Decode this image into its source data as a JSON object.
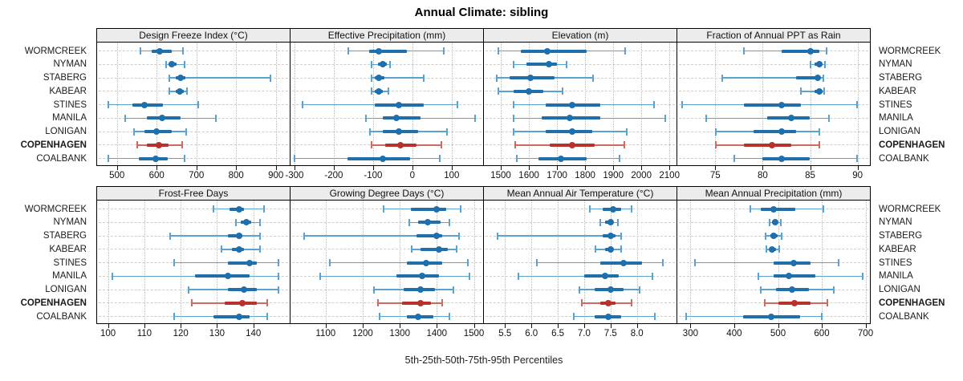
{
  "title": "Annual Climate: sibling",
  "footer": "5th-25th-50th-75th-95th Percentiles",
  "highlight_station": "COPENHAGEN",
  "colors": {
    "series_dark": "#1f6fad",
    "series_light": "#5aa2d0",
    "highlight_dark": "#b5332b",
    "highlight_light": "#cd6a62",
    "strip_bg": "#ececec",
    "panel_border": "#000000",
    "gridline": "#bcbcbc",
    "row_guide": "#cdcdcd"
  },
  "chart_data": {
    "type": "dotplot",
    "layout": {
      "rows": 2,
      "cols": 4,
      "grid": "dotted",
      "legend_position": "bottom"
    },
    "percentile_labels": [
      "5th",
      "25th",
      "50th",
      "75th",
      "95th"
    ],
    "stations": [
      "WORMCREEK",
      "NYMAN",
      "STABERG",
      "KABEAR",
      "STINES",
      "MANILA",
      "LONIGAN",
      "COPENHAGEN",
      "COALBANK"
    ],
    "panels": [
      {
        "title": "Design Freeze Index (°C)",
        "tick_values": [
          500,
          600,
          700,
          800,
          900
        ],
        "tick_labels": [
          "500",
          "600",
          "700",
          "800",
          "900"
        ],
        "xlim": [
          450,
          935
        ],
        "data": [
          [
            558,
            588,
            607,
            638,
            668
          ],
          [
            622,
            630,
            637,
            650,
            672
          ],
          [
            630,
            648,
            660,
            672,
            888
          ],
          [
            630,
            648,
            658,
            668,
            678
          ],
          [
            478,
            538,
            570,
            615,
            705
          ],
          [
            520,
            575,
            613,
            660,
            750
          ],
          [
            542,
            570,
            600,
            638,
            675
          ],
          [
            550,
            575,
            605,
            630,
            665
          ],
          [
            478,
            555,
            598,
            628,
            672
          ]
        ]
      },
      {
        "title": "Effective Precipitation (mm)",
        "tick_values": [
          -300,
          -200,
          -100,
          0,
          100
        ],
        "tick_labels": [
          "-300",
          "-200",
          "-100",
          "0",
          "100"
        ],
        "xlim": [
          -310,
          180
        ],
        "data": [
          [
            -165,
            -110,
            -85,
            -15,
            80
          ],
          [
            -105,
            -88,
            -75,
            -65,
            -55
          ],
          [
            -105,
            -95,
            -85,
            -70,
            30
          ],
          [
            -105,
            -95,
            -85,
            -75,
            -60
          ],
          [
            -280,
            -95,
            -35,
            30,
            115
          ],
          [
            -120,
            -75,
            -40,
            20,
            160
          ],
          [
            -110,
            -75,
            -35,
            15,
            90
          ],
          [
            -105,
            -70,
            -30,
            10,
            75
          ],
          [
            -300,
            -165,
            -75,
            -5,
            70
          ]
        ]
      },
      {
        "title": "Elevation (m)",
        "tick_values": [
          1500,
          1600,
          1700,
          1800,
          1900,
          2000,
          2100
        ],
        "tick_labels": [
          "1500",
          "1600",
          "1700",
          "1800",
          "1900",
          "2000",
          "2100"
        ],
        "xlim": [
          1440,
          2125
        ],
        "data": [
          [
            1490,
            1570,
            1665,
            1805,
            1945
          ],
          [
            1545,
            1590,
            1670,
            1700,
            1735
          ],
          [
            1485,
            1530,
            1605,
            1690,
            1830
          ],
          [
            1490,
            1545,
            1600,
            1650,
            1720
          ],
          [
            1545,
            1660,
            1755,
            1855,
            2045
          ],
          [
            1545,
            1645,
            1745,
            1855,
            2085
          ],
          [
            1545,
            1660,
            1755,
            1825,
            1950
          ],
          [
            1550,
            1675,
            1755,
            1835,
            1940
          ],
          [
            1555,
            1635,
            1715,
            1805,
            1925
          ]
        ]
      },
      {
        "title": "Fraction of Annual PPT as Rain",
        "tick_values": [
          75,
          80,
          85,
          90
        ],
        "tick_labels": [
          "75",
          "80",
          "85",
          "90"
        ],
        "xlim": [
          71,
          91.3
        ],
        "data": [
          [
            78,
            82,
            85,
            86,
            86.8
          ],
          [
            85,
            85.5,
            86,
            86.3,
            86.6
          ],
          [
            75.7,
            83.5,
            85.8,
            86.1,
            86.4
          ],
          [
            84,
            85.5,
            86,
            86.3,
            86.5
          ],
          [
            71.5,
            78,
            82,
            84,
            90
          ],
          [
            74,
            80.5,
            83,
            85,
            87
          ],
          [
            75,
            79,
            82,
            83.5,
            86
          ],
          [
            75,
            78,
            81,
            83,
            86
          ],
          [
            77,
            80,
            82,
            85,
            90
          ]
        ]
      },
      {
        "title": "Frost-Free Days",
        "tick_values": [
          100,
          110,
          120,
          130,
          140
        ],
        "tick_labels": [
          "100",
          "110",
          "120",
          "130",
          "140"
        ],
        "xlim": [
          97,
          150
        ],
        "data": [
          [
            129,
            133.5,
            136,
            137.5,
            143
          ],
          [
            135,
            136.5,
            138,
            139.5,
            142
          ],
          [
            117,
            133,
            136,
            137,
            142
          ],
          [
            131,
            134,
            136,
            137.5,
            142
          ],
          [
            118,
            133,
            139,
            141,
            147
          ],
          [
            101,
            124,
            133,
            139,
            147
          ],
          [
            122,
            133,
            137.5,
            141,
            147
          ],
          [
            123,
            132,
            137,
            141,
            144
          ],
          [
            118,
            129,
            136,
            139,
            144
          ]
        ]
      },
      {
        "title": "Growing Degree Days (°C)",
        "tick_values": [
          1100,
          1200,
          1300,
          1400,
          1500
        ],
        "tick_labels": [
          "1100",
          "1200",
          "1300",
          "1400",
          "1500"
        ],
        "xlim": [
          1005,
          1525
        ],
        "data": [
          [
            1255,
            1330,
            1400,
            1425,
            1465
          ],
          [
            1325,
            1350,
            1375,
            1410,
            1435
          ],
          [
            1040,
            1345,
            1400,
            1415,
            1460
          ],
          [
            1330,
            1355,
            1405,
            1430,
            1455
          ],
          [
            1110,
            1320,
            1370,
            1415,
            1485
          ],
          [
            1085,
            1290,
            1360,
            1405,
            1490
          ],
          [
            1230,
            1310,
            1355,
            1395,
            1445
          ],
          [
            1240,
            1305,
            1355,
            1385,
            1415
          ],
          [
            1245,
            1320,
            1350,
            1390,
            1435
          ]
        ]
      },
      {
        "title": "Mean Annual Air Temperature (°C)",
        "tick_values": [
          5.5,
          6.0,
          6.5,
          7.0,
          7.5,
          8.0
        ],
        "tick_labels": [
          "5.5",
          "6.0",
          "6.5",
          "7.0",
          "7.5",
          "8.0"
        ],
        "xlim": [
          5.1,
          8.75
        ],
        "data": [
          [
            7.1,
            7.35,
            7.55,
            7.7,
            7.9
          ],
          [
            7.3,
            7.4,
            7.5,
            7.55,
            7.65
          ],
          [
            5.35,
            7.35,
            7.5,
            7.6,
            7.7
          ],
          [
            7.2,
            7.4,
            7.5,
            7.55,
            7.7
          ],
          [
            6.1,
            7.3,
            7.75,
            8.1,
            8.5
          ],
          [
            5.75,
            7.0,
            7.4,
            7.65,
            8.3
          ],
          [
            6.9,
            7.2,
            7.5,
            7.75,
            8.05
          ],
          [
            6.95,
            7.3,
            7.45,
            7.6,
            7.9
          ],
          [
            6.8,
            7.2,
            7.45,
            7.7,
            8.35
          ]
        ]
      },
      {
        "title": "Mean Annual Precipitation (mm)",
        "tick_values": [
          300,
          400,
          500,
          600,
          700
        ],
        "tick_labels": [
          "300",
          "400",
          "500",
          "600",
          "700"
        ],
        "xlim": [
          270,
          710
        ],
        "data": [
          [
            435,
            460,
            490,
            540,
            605
          ],
          [
            480,
            487,
            493,
            500,
            507
          ],
          [
            470,
            482,
            490,
            500,
            510
          ],
          [
            472,
            480,
            487,
            495,
            503
          ],
          [
            310,
            490,
            535,
            575,
            640
          ],
          [
            455,
            490,
            525,
            585,
            695
          ],
          [
            460,
            495,
            532,
            570,
            628
          ],
          [
            468,
            500,
            538,
            575,
            613
          ],
          [
            290,
            420,
            485,
            550,
            600
          ]
        ]
      }
    ]
  }
}
